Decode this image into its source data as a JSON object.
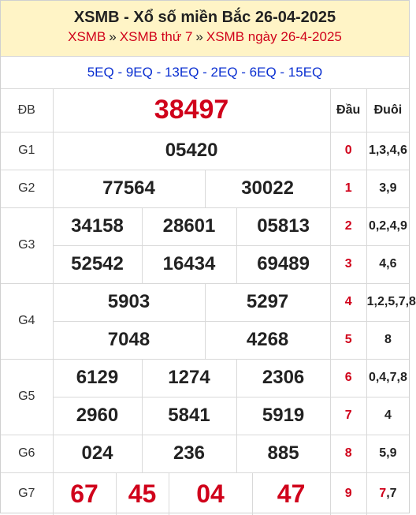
{
  "header": {
    "title": "XSMB - Xổ số miền Bắc 26-04-2025",
    "breadcrumb": [
      "XSMB",
      "XSMB thứ 7",
      "XSMB ngày 26-4-2025"
    ],
    "separator": "»"
  },
  "codes": "5EQ - 9EQ - 13EQ - 2EQ - 6EQ - 15EQ",
  "columns": {
    "dau": "Đầu",
    "duoi": "Đuôi"
  },
  "prizes": {
    "db": {
      "label": "ĐB",
      "numbers": [
        "38497"
      ]
    },
    "g1": {
      "label": "G1",
      "numbers": [
        "05420"
      ]
    },
    "g2": {
      "label": "G2",
      "numbers": [
        "77564",
        "30022"
      ]
    },
    "g3": {
      "label": "G3",
      "numbers": [
        "34158",
        "28601",
        "05813",
        "52542",
        "16434",
        "69489"
      ]
    },
    "g4": {
      "label": "G4",
      "numbers": [
        "5903",
        "5297",
        "7048",
        "4268"
      ]
    },
    "g5": {
      "label": "G5",
      "numbers": [
        "6129",
        "1274",
        "2306",
        "2960",
        "5841",
        "5919"
      ]
    },
    "g6": {
      "label": "G6",
      "numbers": [
        "024",
        "236",
        "885"
      ]
    },
    "g7": {
      "label": "G7",
      "numbers": [
        "67",
        "45",
        "04",
        "47"
      ]
    }
  },
  "loto": [
    {
      "dau": "0",
      "duoi": "1,3,4,6"
    },
    {
      "dau": "1",
      "duoi": "3,9"
    },
    {
      "dau": "2",
      "duoi": "0,2,4,9"
    },
    {
      "dau": "3",
      "duoi": "4,6"
    },
    {
      "dau": "4",
      "duoi": "1,2,5,7,8"
    },
    {
      "dau": "5",
      "duoi": "8"
    },
    {
      "dau": "6",
      "duoi": "0,4,7,8"
    },
    {
      "dau": "7",
      "duoi": "4"
    },
    {
      "dau": "8",
      "duoi": "5,9"
    },
    {
      "dau": "9",
      "duoi_red": "7",
      "duoi_rest": ",7"
    }
  ],
  "colors": {
    "red": "#d0021b",
    "blue": "#0a2fd1",
    "header_bg": "#fff4c6"
  }
}
